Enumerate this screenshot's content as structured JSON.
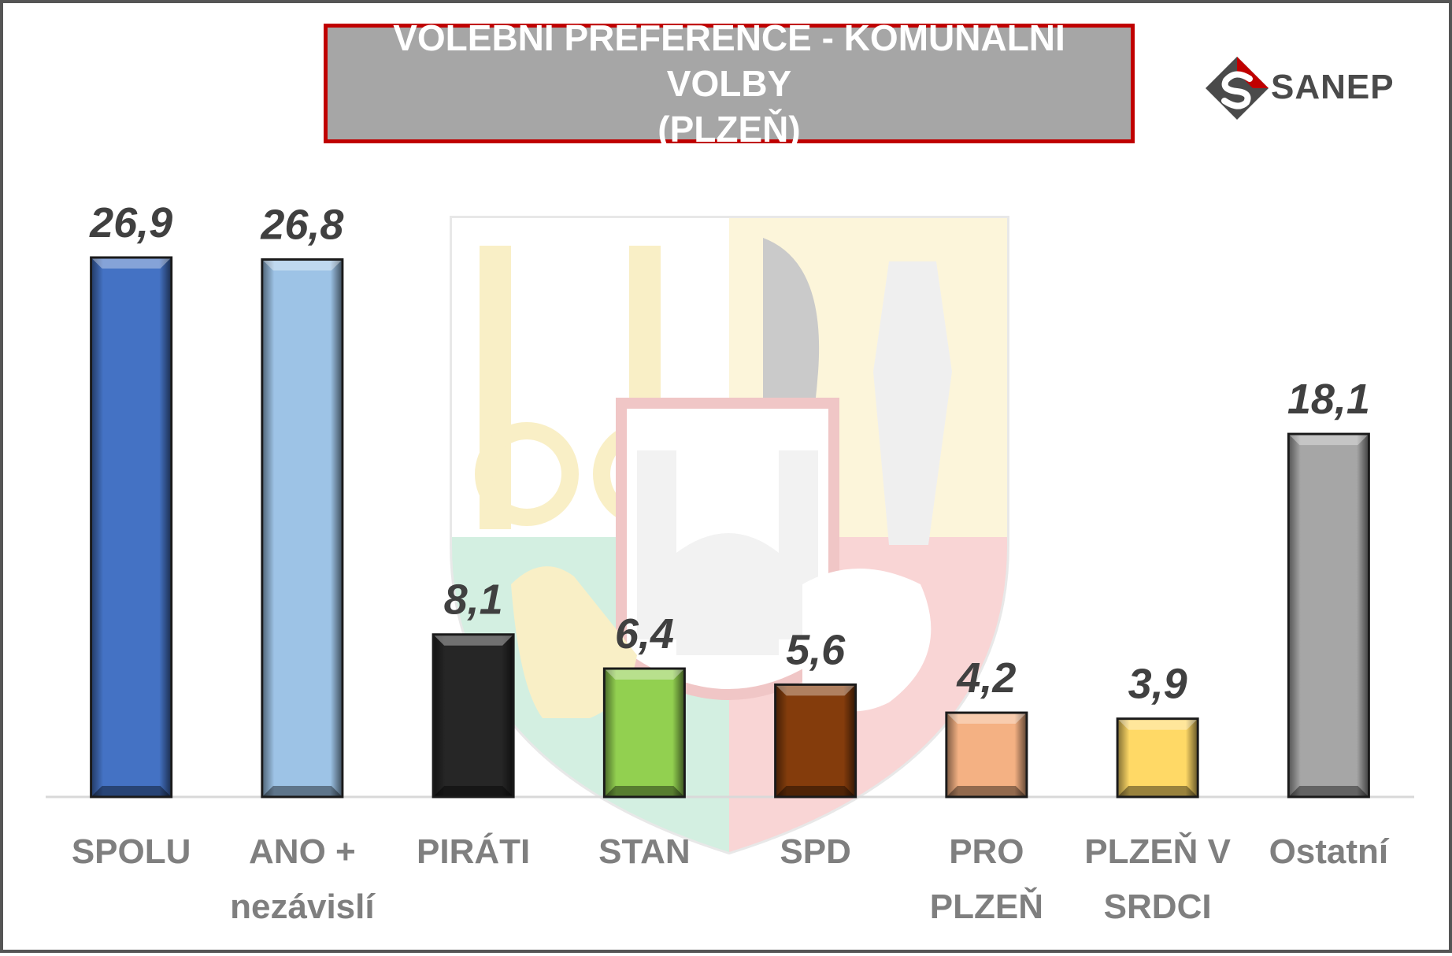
{
  "chart_data": {
    "type": "bar",
    "title": [
      "VOLEBNÍ PREFERENCE - KOMUNÁLNÍ VOLBY",
      "(PLZEŇ)"
    ],
    "categories": [
      [
        "SPOLU"
      ],
      [
        "ANO +",
        "nezávislí"
      ],
      [
        "PIRÁTI"
      ],
      [
        "STAN"
      ],
      [
        "SPD"
      ],
      [
        "PRO",
        "PLZEŇ"
      ],
      [
        "PLZEŇ V",
        "SRDCI"
      ],
      [
        "Ostatní"
      ]
    ],
    "values": [
      26.9,
      26.8,
      8.1,
      6.4,
      5.6,
      4.2,
      3.9,
      18.1
    ],
    "value_labels": [
      "26,9",
      "26,8",
      "8,1",
      "6,4",
      "5,6",
      "4,2",
      "3,9",
      "18,1"
    ],
    "colors": [
      "#4472c4",
      "#9dc3e6",
      "#262626",
      "#92d050",
      "#843c0c",
      "#f4b183",
      "#ffd966",
      "#a6a6a6"
    ],
    "ylim": [
      0,
      30
    ],
    "grid": false,
    "legend": "none",
    "xlabel": "",
    "ylabel": ""
  },
  "logo": {
    "text": "SANEP",
    "accent": "#c00000"
  }
}
